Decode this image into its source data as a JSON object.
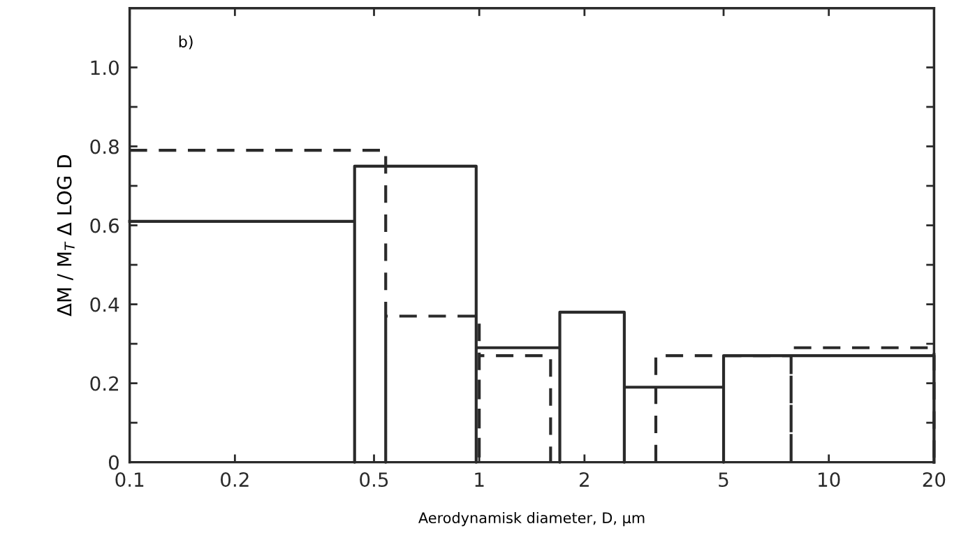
{
  "chart_data": {
    "type": "line",
    "xlabel": "Aerodynamisk diameter, D, µm",
    "ylabel": "ΔM / M$_{T}$ Δ LOG D",
    "annotations": [
      "b)"
    ],
    "log": "x",
    "xlim": [
      0.1,
      20
    ],
    "xticks": [
      0.1,
      0.2,
      0.5,
      1,
      2,
      5,
      10,
      20
    ],
    "ylim": [
      0,
      1.15
    ],
    "yticks": [
      0,
      {
        "value": 0.1,
        "label": null
      },
      0.2,
      {
        "value": 0.3,
        "label": null
      },
      0.4,
      {
        "value": 0.5,
        "label": null
      },
      0.6,
      {
        "value": 0.7,
        "label": null
      },
      0.8,
      {
        "value": 0.9,
        "label": null
      },
      {
        "value": 1.0,
        "label": "1.0"
      }
    ],
    "grid": false,
    "legend": false,
    "marker": "none",
    "series": [
      {
        "color": "#2a2a2a",
        "line_style": "solid",
        "x": [
          0.1,
          0.44,
          0.44,
          0.44,
          0.98,
          0.98,
          0.98,
          1.7,
          1.7,
          1.7,
          2.6,
          2.6,
          2.6,
          5.0,
          5.0,
          5.0,
          20,
          20
        ],
        "values": [
          0.61,
          0.61,
          0,
          0.75,
          0.75,
          0,
          0.29,
          0.29,
          0,
          0.38,
          0.38,
          0,
          0.19,
          0.19,
          0,
          0.27,
          0.27,
          0
        ]
      },
      {
        "color": "#2a2a2a",
        "line_style": "dashed",
        "x": [
          0.1,
          0.54,
          0.54,
          0.54,
          1.0,
          1.0,
          1.0,
          1.6,
          1.6,
          2.2,
          3.2,
          3.2,
          7.8,
          7.8,
          7.8,
          20,
          20
        ],
        "values": [
          0.79,
          0.79,
          0,
          0.37,
          0.37,
          0,
          0.27,
          0.27,
          0,
          null,
          0,
          0.27,
          0.27,
          0,
          0.29,
          0.29,
          0
        ]
      }
    ]
  }
}
